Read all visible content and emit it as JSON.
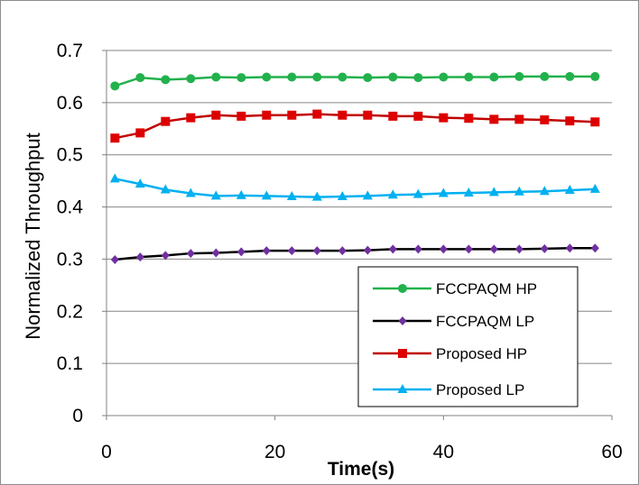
{
  "chart_data": {
    "type": "line",
    "title": "",
    "xlabel": "Time(s)",
    "ylabel": "Normalized Throughput",
    "xlim": [
      0,
      60
    ],
    "ylim": [
      0,
      0.7
    ],
    "xticks": [
      "0",
      "20",
      "40",
      "60"
    ],
    "yticks": [
      "0",
      "0.1",
      "0.2",
      "0.3",
      "0.4",
      "0.5",
      "0.6",
      "0.7"
    ],
    "grid": "horizontal",
    "legend_position": "bottom-right",
    "x": [
      1,
      4,
      7,
      10,
      13,
      16,
      19,
      22,
      25,
      28,
      31,
      34,
      37,
      40,
      43,
      46,
      49,
      52,
      55,
      58
    ],
    "series": [
      {
        "name": "FCCPAQM  HP",
        "color": "#22b14c",
        "marker": "circle",
        "values": [
          0.632,
          0.648,
          0.644,
          0.646,
          0.649,
          0.648,
          0.649,
          0.649,
          0.649,
          0.649,
          0.648,
          0.649,
          0.648,
          0.649,
          0.649,
          0.649,
          0.65,
          0.65,
          0.65,
          0.65
        ]
      },
      {
        "name": "FCCPAQM LP",
        "color": "#000000",
        "marker_color": "#7030a0",
        "marker": "diamond",
        "values": [
          0.299,
          0.304,
          0.307,
          0.311,
          0.312,
          0.314,
          0.316,
          0.316,
          0.316,
          0.316,
          0.317,
          0.319,
          0.319,
          0.319,
          0.319,
          0.319,
          0.319,
          0.32,
          0.321,
          0.321
        ]
      },
      {
        "name": "Proposed HP",
        "color": "#c00000",
        "marker_color": "#dd0000",
        "marker": "square",
        "values": [
          0.532,
          0.542,
          0.564,
          0.571,
          0.576,
          0.574,
          0.576,
          0.576,
          0.578,
          0.576,
          0.576,
          0.574,
          0.574,
          0.571,
          0.57,
          0.568,
          0.568,
          0.567,
          0.565,
          0.563
        ]
      },
      {
        "name": "Proposed LP",
        "color": "#00b0f0",
        "marker": "triangle",
        "values": [
          0.454,
          0.444,
          0.433,
          0.426,
          0.421,
          0.422,
          0.421,
          0.42,
          0.419,
          0.42,
          0.421,
          0.423,
          0.424,
          0.426,
          0.427,
          0.428,
          0.429,
          0.43,
          0.432,
          0.434
        ]
      }
    ]
  }
}
